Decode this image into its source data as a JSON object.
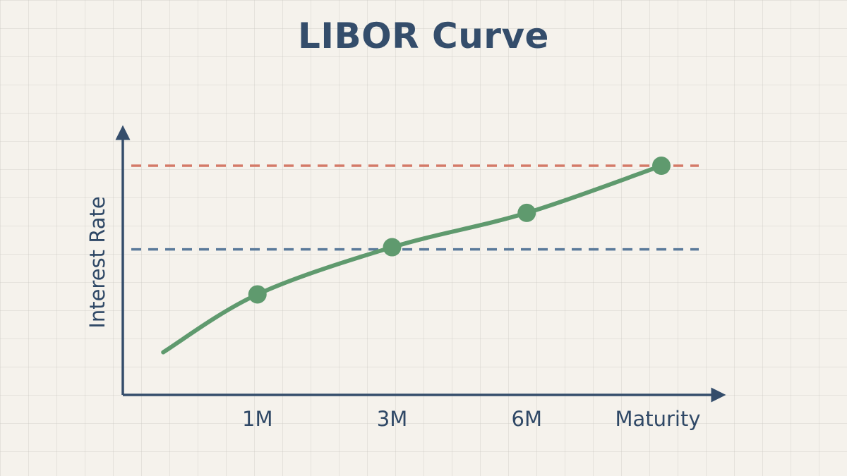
{
  "chart_data": {
    "type": "line",
    "title": "LIBOR Curve",
    "xlabel": "Maturity",
    "ylabel": "Interest Rate",
    "categories": [
      "1M",
      "3M",
      "6M"
    ],
    "xlim": [
      0,
      4
    ],
    "ylim": [
      0,
      100
    ],
    "curve": {
      "x": [
        0.3,
        1,
        2,
        3,
        4
      ],
      "y": [
        12,
        39,
        61,
        77,
        99
      ],
      "markers": [
        {
          "x": 1,
          "y": 39
        },
        {
          "x": 2,
          "y": 61
        },
        {
          "x": 3,
          "y": 77
        },
        {
          "x": 4,
          "y": 99
        }
      ]
    },
    "reference_lines": [
      {
        "y": 99,
        "style": "dashed",
        "color": "#d47a68"
      },
      {
        "y": 60,
        "style": "dashed",
        "color": "#5a7a9a"
      }
    ],
    "axes_color": "#344d6b",
    "series_color": "#5f9a6e",
    "grid": true
  }
}
